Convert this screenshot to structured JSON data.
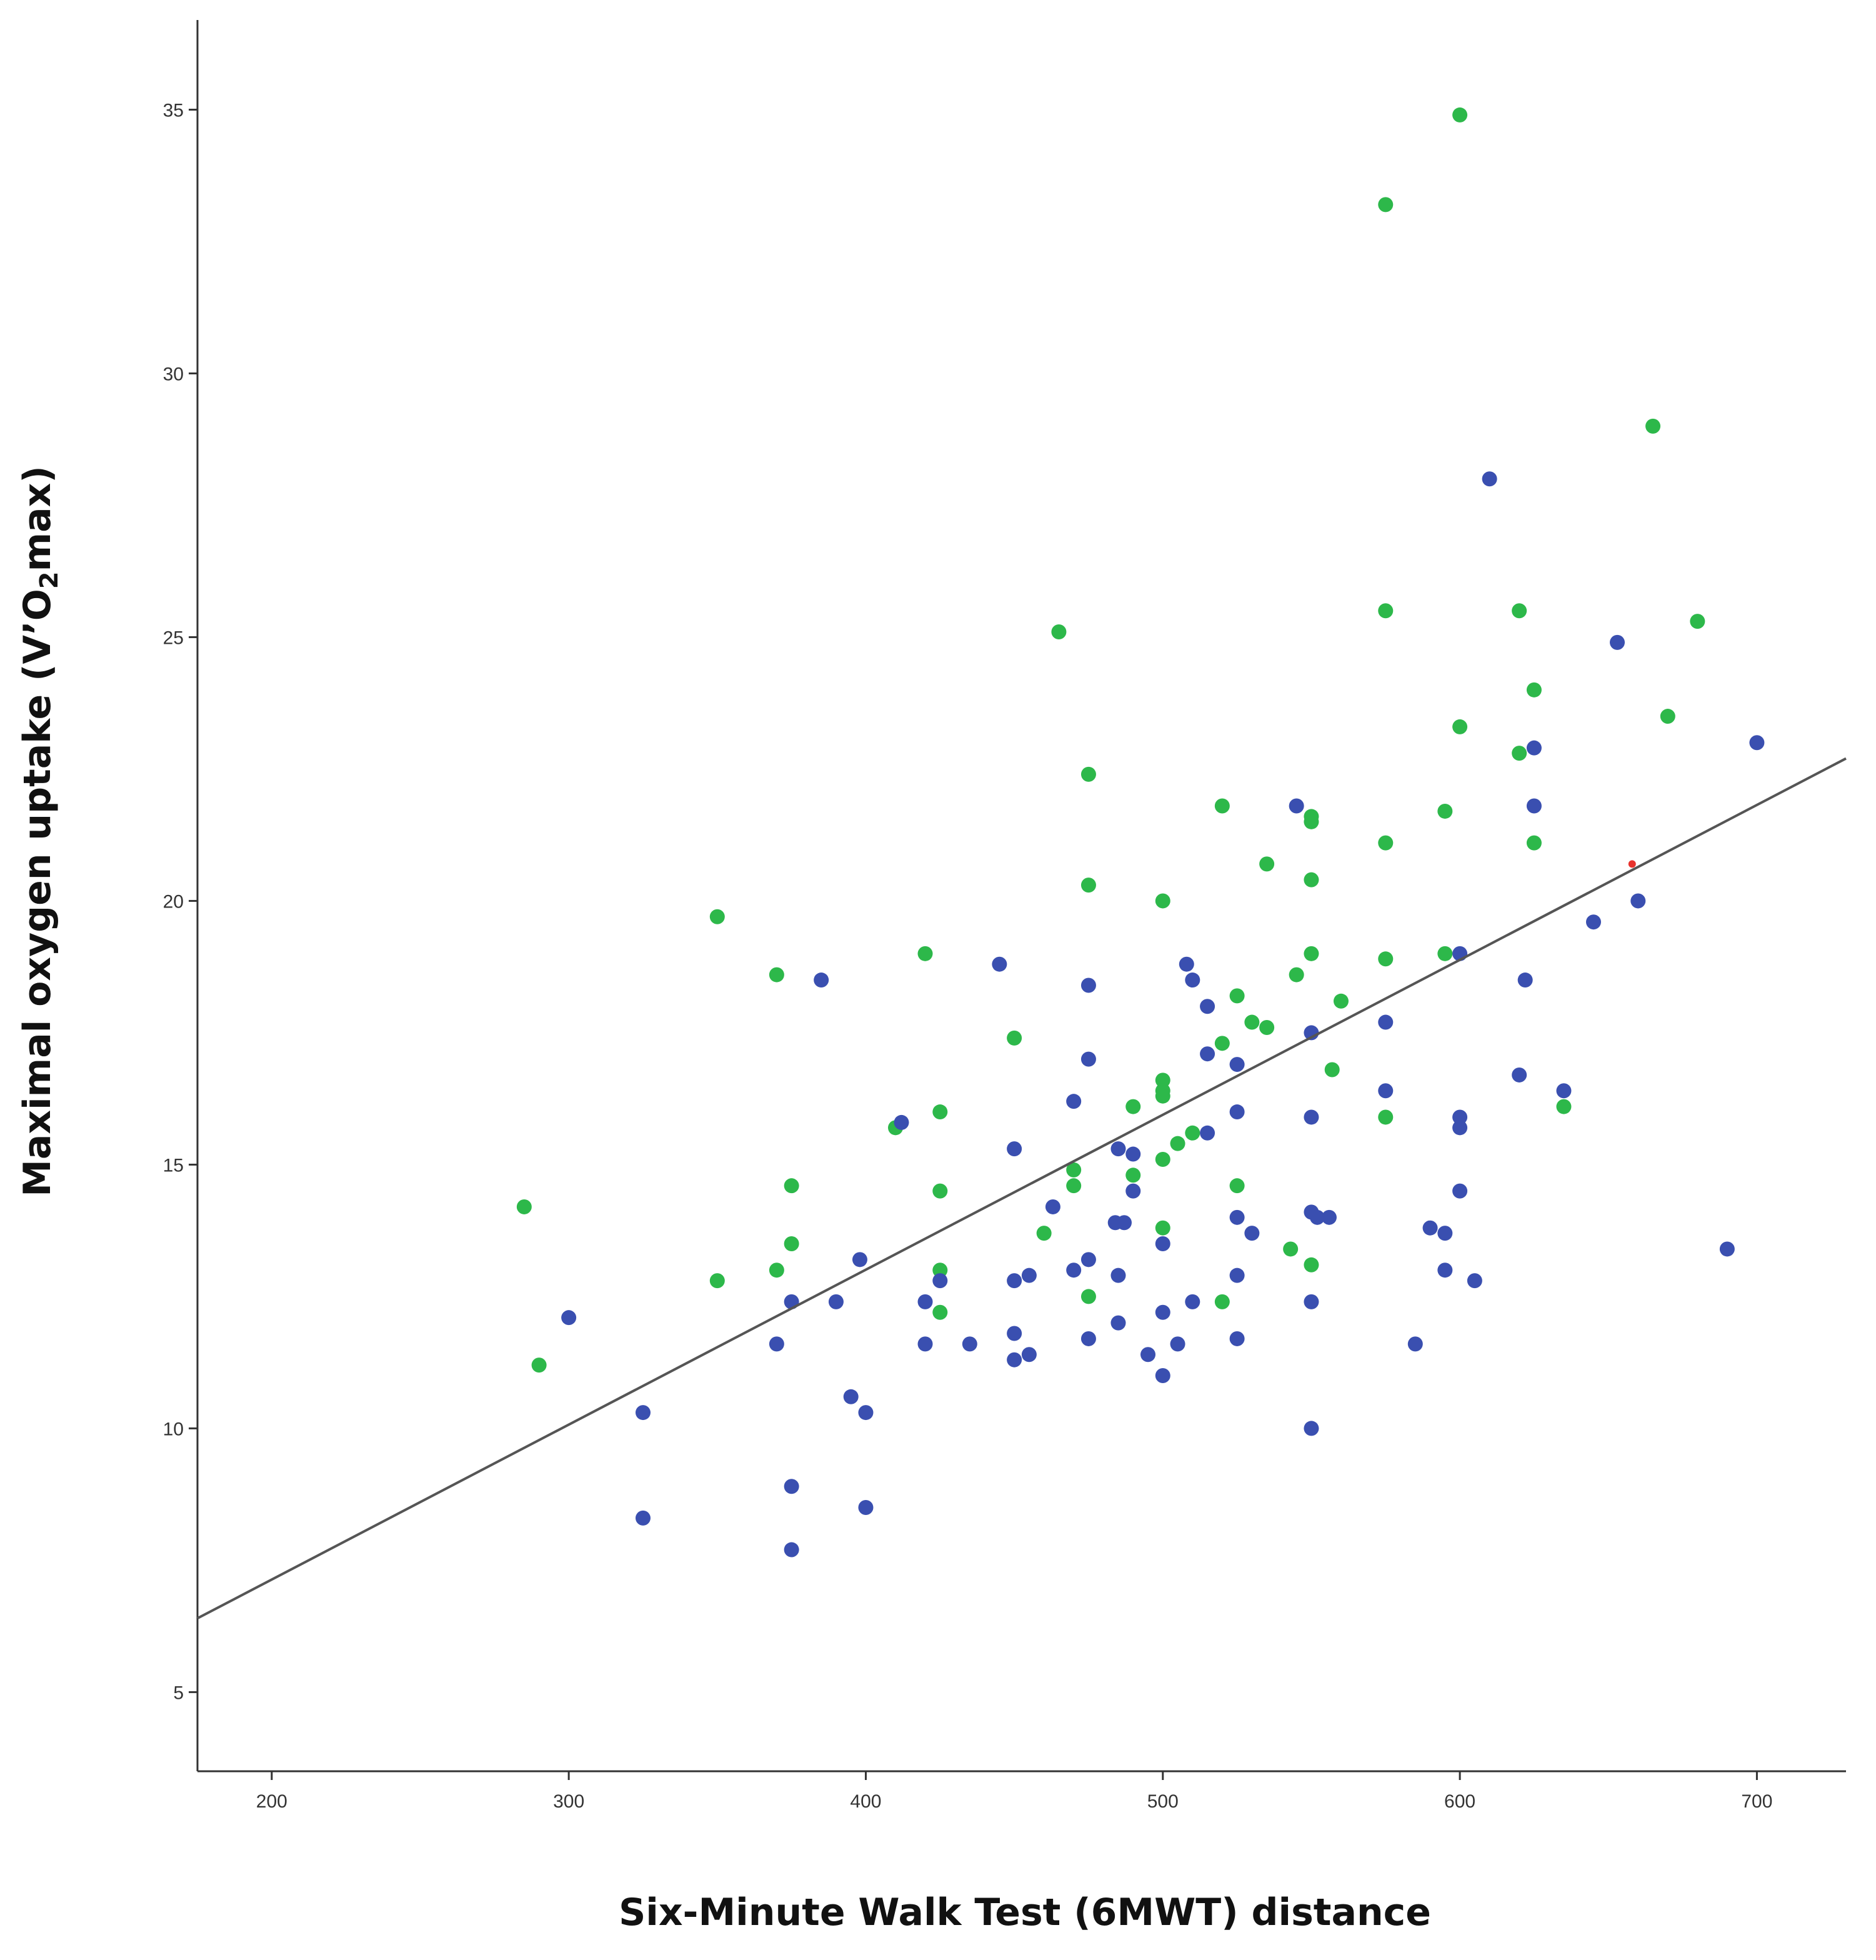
{
  "chart_data": {
    "type": "scatter",
    "title": "",
    "xlabel": "Six-Minute Walk Test (6MWT) distance",
    "ylabel_parts": [
      "Maximal oxygen uptake (V’O",
      "2",
      "max)"
    ],
    "xlim": [
      175,
      730
    ],
    "ylim": [
      3.5,
      36.7
    ],
    "x_ticks": [
      200,
      300,
      400,
      500,
      600,
      700
    ],
    "y_ticks": [
      5,
      10,
      15,
      20,
      25,
      30,
      35
    ],
    "x_tick_labels": [
      "200",
      "300",
      "400",
      "500",
      "600",
      "700"
    ],
    "y_tick_labels": [
      "5",
      "10",
      "15",
      "20",
      "25",
      "30",
      "35"
    ],
    "grid": false,
    "legend": "none",
    "fit_line": {
      "x": [
        175,
        730
      ],
      "y": [
        6.4,
        22.7
      ],
      "color": "#555555"
    },
    "series": [
      {
        "name": "green",
        "color": "#2db84a",
        "points": [
          [
            600,
            34.9
          ],
          [
            575,
            33.2
          ],
          [
            665,
            29
          ],
          [
            465,
            25.1
          ],
          [
            575,
            25.5
          ],
          [
            620,
            25.5
          ],
          [
            680,
            25.3
          ],
          [
            625,
            24
          ],
          [
            600,
            23.3
          ],
          [
            670,
            23.5
          ],
          [
            475,
            22.4
          ],
          [
            620,
            22.8
          ],
          [
            520,
            21.8
          ],
          [
            595,
            21.7
          ],
          [
            550,
            21.6
          ],
          [
            550,
            21.5
          ],
          [
            575,
            21.1
          ],
          [
            625,
            21.1
          ],
          [
            535,
            20.7
          ],
          [
            475,
            20.3
          ],
          [
            550,
            20.4
          ],
          [
            500,
            20
          ],
          [
            350,
            19.7
          ],
          [
            420,
            19
          ],
          [
            550,
            19
          ],
          [
            575,
            18.9
          ],
          [
            595,
            19
          ],
          [
            370,
            18.6
          ],
          [
            545,
            18.6
          ],
          [
            525,
            18.2
          ],
          [
            560,
            18.1
          ],
          [
            530,
            17.7
          ],
          [
            535,
            17.6
          ],
          [
            450,
            17.4
          ],
          [
            520,
            17.3
          ],
          [
            557,
            16.8
          ],
          [
            500,
            16.6
          ],
          [
            500,
            16.4
          ],
          [
            500,
            16.3
          ],
          [
            490,
            16.1
          ],
          [
            425,
            16
          ],
          [
            575,
            15.9
          ],
          [
            635,
            16.1
          ],
          [
            410,
            15.7
          ],
          [
            510,
            15.6
          ],
          [
            505,
            15.4
          ],
          [
            500,
            15.1
          ],
          [
            470,
            14.9
          ],
          [
            470,
            14.6
          ],
          [
            490,
            14.8
          ],
          [
            375,
            14.6
          ],
          [
            425,
            14.5
          ],
          [
            525,
            14.6
          ],
          [
            285,
            14.2
          ],
          [
            460,
            13.7
          ],
          [
            500,
            13.8
          ],
          [
            375,
            13.5
          ],
          [
            543,
            13.4
          ],
          [
            370,
            13
          ],
          [
            425,
            13
          ],
          [
            550,
            13.1
          ],
          [
            350,
            12.8
          ],
          [
            475,
            12.5
          ],
          [
            520,
            12.4
          ],
          [
            425,
            12.2
          ],
          [
            290,
            11.2
          ]
        ]
      },
      {
        "name": "blue",
        "color": "#3a4fb0",
        "points": [
          [
            610,
            28
          ],
          [
            653,
            24.9
          ],
          [
            700,
            23
          ],
          [
            625,
            22.9
          ],
          [
            545,
            21.8
          ],
          [
            625,
            21.8
          ],
          [
            660,
            20
          ],
          [
            645,
            19.6
          ],
          [
            600,
            19
          ],
          [
            445,
            18.8
          ],
          [
            508,
            18.8
          ],
          [
            385,
            18.5
          ],
          [
            510,
            18.5
          ],
          [
            622,
            18.5
          ],
          [
            475,
            18.4
          ],
          [
            515,
            18
          ],
          [
            575,
            17.7
          ],
          [
            550,
            17.5
          ],
          [
            515,
            17.1
          ],
          [
            475,
            17
          ],
          [
            525,
            16.9
          ],
          [
            620,
            16.7
          ],
          [
            575,
            16.4
          ],
          [
            635,
            16.4
          ],
          [
            470,
            16.2
          ],
          [
            525,
            16
          ],
          [
            550,
            15.9
          ],
          [
            600,
            15.9
          ],
          [
            412,
            15.8
          ],
          [
            600,
            15.7
          ],
          [
            515,
            15.6
          ],
          [
            450,
            15.3
          ],
          [
            485,
            15.3
          ],
          [
            490,
            15.2
          ],
          [
            490,
            14.5
          ],
          [
            600,
            14.5
          ],
          [
            463,
            14.2
          ],
          [
            550,
            14.1
          ],
          [
            552,
            14
          ],
          [
            556,
            14
          ],
          [
            525,
            14
          ],
          [
            484,
            13.9
          ],
          [
            487,
            13.9
          ],
          [
            530,
            13.7
          ],
          [
            590,
            13.8
          ],
          [
            595,
            13.7
          ],
          [
            690,
            13.4
          ],
          [
            500,
            13.5
          ],
          [
            398,
            13.2
          ],
          [
            475,
            13.2
          ],
          [
            470,
            13
          ],
          [
            595,
            13
          ],
          [
            455,
            12.9
          ],
          [
            485,
            12.9
          ],
          [
            525,
            12.9
          ],
          [
            450,
            12.8
          ],
          [
            425,
            12.8
          ],
          [
            605,
            12.8
          ],
          [
            375,
            12.4
          ],
          [
            390,
            12.4
          ],
          [
            420,
            12.4
          ],
          [
            510,
            12.4
          ],
          [
            550,
            12.4
          ],
          [
            300,
            12.1
          ],
          [
            500,
            12.2
          ],
          [
            485,
            12
          ],
          [
            450,
            11.8
          ],
          [
            370,
            11.6
          ],
          [
            420,
            11.6
          ],
          [
            435,
            11.6
          ],
          [
            475,
            11.7
          ],
          [
            505,
            11.6
          ],
          [
            525,
            11.7
          ],
          [
            585,
            11.6
          ],
          [
            495,
            11.4
          ],
          [
            455,
            11.4
          ],
          [
            450,
            11.3
          ],
          [
            500,
            11
          ],
          [
            395,
            10.6
          ],
          [
            325,
            10.3
          ],
          [
            400,
            10.3
          ],
          [
            550,
            10
          ],
          [
            375,
            8.9
          ],
          [
            400,
            8.5
          ],
          [
            325,
            8.3
          ],
          [
            375,
            7.7
          ]
        ]
      },
      {
        "name": "red",
        "color": "#e8322d",
        "points": [
          [
            658,
            20.7
          ]
        ]
      }
    ]
  }
}
